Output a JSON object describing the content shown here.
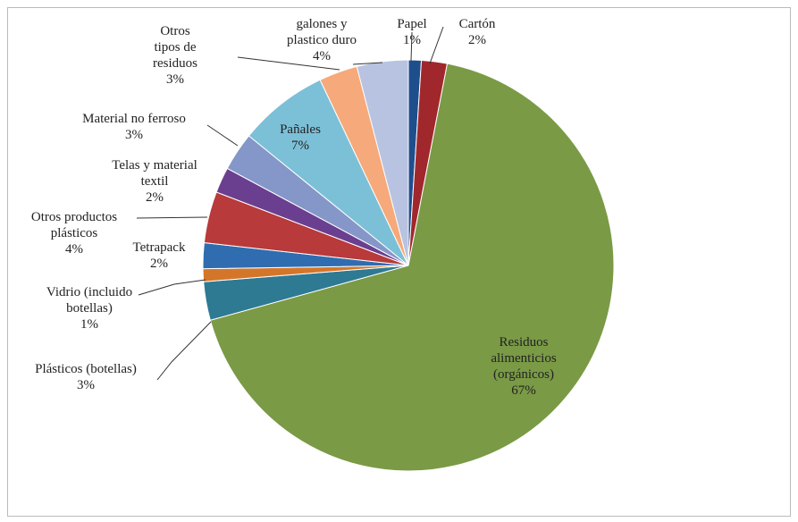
{
  "chart_data": {
    "type": "pie",
    "categories": [
      "Papel",
      "Cartón",
      "Residuos\nalimenticios\n(orgánicos)",
      "Plásticos (botellas)",
      "Vidrio (incluido\nbotellas)",
      "Tetrapack",
      "Otros productos\nplásticos",
      "Telas y material\ntextil",
      "Material no ferroso",
      "Pañales",
      "Otros\ntipos de\nresiduos",
      "galones y\nplastico duro"
    ],
    "values": [
      1,
      2,
      67,
      3,
      1,
      2,
      4,
      2,
      3,
      7,
      3,
      4
    ],
    "value_labels": [
      "1%",
      "2%",
      "67%",
      "3%",
      "1%",
      "2%",
      "4%",
      "2%",
      "3%",
      "7%",
      "3%",
      "4%"
    ],
    "colors": [
      "#1f4e8c",
      "#a0282c",
      "#7a9a46",
      "#2e7a93",
      "#d4762a",
      "#2f6db0",
      "#b83a3a",
      "#6a3f8f",
      "#8596c8",
      "#7cc0d8",
      "#f6a97a",
      "#b7c3e0"
    ]
  }
}
